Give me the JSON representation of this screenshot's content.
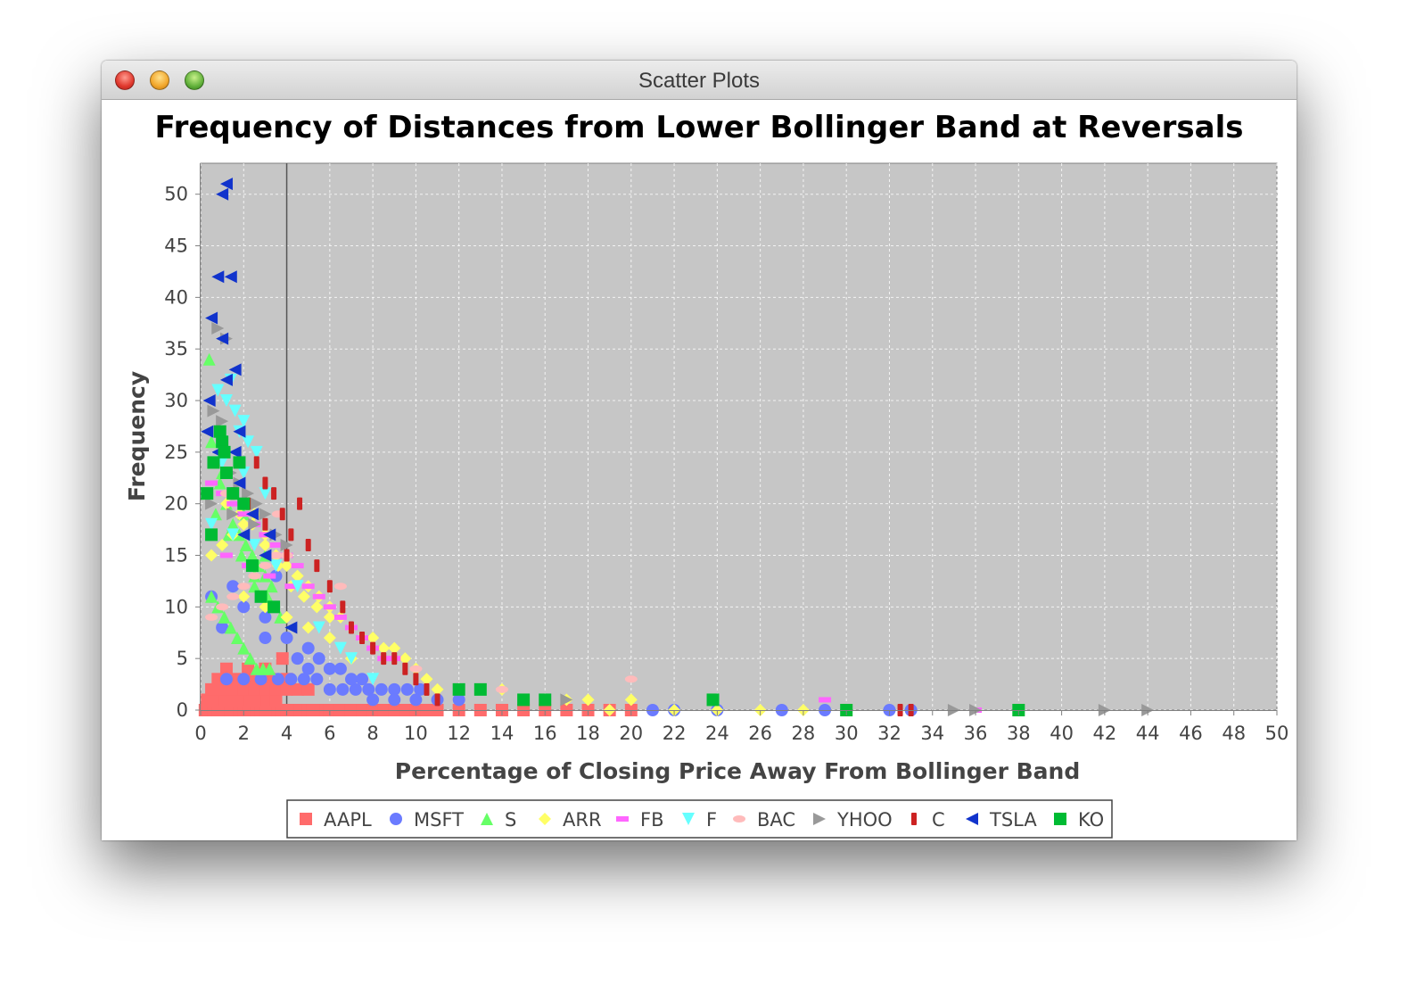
{
  "window": {
    "title": "Scatter Plots"
  },
  "chart_data": {
    "type": "scatter",
    "title": "Frequency of Distances from Lower Bollinger Band at Reversals",
    "xlabel": "Percentage of Closing Price Away From Bollinger Band",
    "ylabel": "Frequency",
    "xlim": [
      0,
      50
    ],
    "ylim": [
      0,
      53
    ],
    "x_ticks": [
      "0",
      "2",
      "4",
      "6",
      "8",
      "10",
      "12",
      "14",
      "16",
      "18",
      "20",
      "22",
      "24",
      "26",
      "28",
      "30",
      "32",
      "34",
      "36",
      "38",
      "40",
      "42",
      "44",
      "46",
      "48",
      "50"
    ],
    "y_ticks": [
      "0",
      "5",
      "10",
      "15",
      "20",
      "25",
      "30",
      "35",
      "40",
      "45",
      "50"
    ],
    "grid": true,
    "legend_position": "bottom",
    "reference_line_x": 4,
    "series": [
      {
        "name": "AAPL",
        "marker": "square",
        "color": "#ff6b6b",
        "x": [
          0.2,
          0.4,
          0.6,
          0.8,
          1,
          1.2,
          1.4,
          1.6,
          1.8,
          2,
          2.2,
          2.4,
          2.6,
          2.8,
          3,
          3.2,
          3.4,
          3.6,
          3.8,
          4,
          4.2,
          4.4,
          4.6,
          4.8,
          5,
          5.2,
          5.4,
          5.6,
          5.8,
          6,
          6.5,
          7,
          7.5,
          8,
          8.5,
          9,
          9.5,
          10,
          10.5,
          11,
          12,
          13,
          14,
          15,
          16,
          17,
          18,
          19,
          20,
          0.3,
          0.7,
          1.1,
          1.5,
          1.9,
          2.3,
          2.7,
          3.1,
          3.5,
          0.5,
          1,
          1.5,
          2,
          2.5,
          3,
          3.5,
          4,
          4.5,
          5,
          0.8,
          1.6,
          2.4,
          3.2,
          4,
          1.2,
          2.2,
          3,
          3.8
        ],
        "y": [
          0,
          0,
          0,
          0,
          0,
          0,
          0,
          0,
          0,
          0,
          0,
          0,
          0,
          0,
          0,
          0,
          0,
          0,
          0,
          0,
          0,
          0,
          0,
          0,
          0,
          0,
          0,
          0,
          0,
          0,
          0,
          0,
          0,
          0,
          0,
          0,
          0,
          0,
          0,
          0,
          0,
          0,
          0,
          0,
          0,
          0,
          0,
          0,
          0,
          1,
          1,
          1,
          1,
          1,
          1,
          1,
          1,
          1,
          2,
          2,
          2,
          2,
          2,
          2,
          2,
          2,
          2,
          2,
          3,
          3,
          3,
          3,
          3,
          4,
          4,
          4,
          5
        ]
      },
      {
        "name": "MSFT",
        "marker": "circle",
        "color": "#6b7bff",
        "x": [
          1.2,
          2,
          2.8,
          3.6,
          4.2,
          4.8,
          5.4,
          6,
          6.6,
          7.2,
          7.8,
          8.4,
          9,
          9.6,
          10.2,
          11,
          12,
          5,
          6,
          7,
          8,
          9,
          10,
          4.5,
          5.5,
          6.5,
          7.5,
          3,
          4,
          5,
          1,
          2,
          3,
          21,
          22,
          24,
          27,
          29,
          32,
          33,
          0.5,
          1.5,
          2.5,
          3.5
        ],
        "y": [
          3,
          3,
          3,
          3,
          3,
          3,
          3,
          2,
          2,
          2,
          2,
          2,
          2,
          2,
          2,
          1,
          1,
          4,
          4,
          3,
          1,
          1,
          1,
          5,
          5,
          4,
          3,
          7,
          7,
          6,
          8,
          10,
          9,
          0,
          0,
          0,
          0,
          0,
          0,
          0,
          11,
          12,
          14,
          13
        ]
      },
      {
        "name": "S",
        "marker": "triangle-up",
        "color": "#66ff66",
        "x": [
          0.4,
          0.6,
          0.9,
          1.2,
          1.5,
          1.8,
          2.1,
          2.4,
          2.7,
          3,
          3.3,
          0.5,
          0.8,
          1.1,
          1.4,
          1.7,
          2,
          2.3,
          2.6,
          2.9,
          3.2,
          0.3,
          0.7,
          1.3,
          1.9,
          2.5,
          3.1,
          3.7,
          1,
          2,
          3,
          0.5,
          1.5,
          2.5
        ],
        "y": [
          34,
          24,
          22,
          20,
          18,
          17,
          16,
          15,
          14,
          13,
          12,
          11,
          10,
          9,
          8,
          7,
          6,
          5,
          4,
          4,
          4,
          21,
          19,
          17,
          15,
          13,
          11,
          9,
          23,
          19,
          15,
          26,
          18,
          12
        ]
      },
      {
        "name": "ARR",
        "marker": "diamond",
        "color": "#ffff66",
        "x": [
          0.5,
          1,
          1.5,
          2,
          2.5,
          3,
          3.5,
          4,
          4.5,
          5,
          5.5,
          6,
          6.5,
          7,
          7.5,
          8,
          8.5,
          9,
          9.5,
          10,
          10.5,
          11,
          12,
          13,
          14,
          15,
          16,
          17,
          18,
          19,
          20,
          22,
          24,
          26,
          28,
          30,
          1.2,
          1.8,
          2.4,
          3,
          3.6,
          4.2,
          4.8,
          5.4,
          6,
          2,
          3,
          4,
          5,
          6,
          7
        ],
        "y": [
          15,
          16,
          17,
          18,
          19,
          17,
          15,
          14,
          13,
          12,
          11,
          10,
          9,
          8,
          7,
          7,
          6,
          6,
          5,
          4,
          3,
          2,
          2,
          2,
          2,
          1,
          1,
          1,
          1,
          0,
          1,
          0,
          0,
          0,
          0,
          0,
          20,
          19,
          18,
          16,
          14,
          12,
          11,
          10,
          9,
          11,
          10,
          9,
          8,
          7,
          5
        ]
      },
      {
        "name": "FB",
        "marker": "dash",
        "color": "#ff66ff",
        "x": [
          0.5,
          1,
          1.5,
          2,
          2.5,
          3,
          3.5,
          4,
          4.5,
          5,
          5.5,
          6,
          6.5,
          7,
          7.5,
          8,
          8.5,
          9,
          1.2,
          2.2,
          3.2,
          4.2,
          29,
          36
        ],
        "y": [
          22,
          21,
          20,
          19,
          18,
          17,
          16,
          15,
          14,
          12,
          11,
          10,
          9,
          8,
          7,
          6,
          5,
          5,
          15,
          14,
          13,
          12,
          1,
          0
        ]
      },
      {
        "name": "F",
        "marker": "triangle-down",
        "color": "#66ffff",
        "x": [
          0.8,
          1.2,
          1.6,
          2,
          1.4,
          1.8,
          2.2,
          2.6,
          1,
          2,
          3,
          0.5,
          1.5,
          2.5,
          3.5,
          4.5,
          5.5,
          6.5,
          7,
          8
        ],
        "y": [
          31,
          30,
          29,
          28,
          32,
          27,
          26,
          25,
          24,
          23,
          21,
          18,
          17,
          16,
          14,
          12,
          8,
          6,
          5,
          3
        ]
      },
      {
        "name": "BAC",
        "marker": "ellipse",
        "color": "#ffbbbb",
        "x": [
          0.5,
          1,
          1.5,
          2,
          2.5,
          3,
          3.5,
          4,
          6.5,
          10,
          20,
          12,
          14,
          1.2,
          2.4,
          3.6
        ],
        "y": [
          9,
          10,
          11,
          12,
          13,
          14,
          15,
          15,
          12,
          4,
          3,
          2,
          2,
          21,
          20,
          19
        ]
      },
      {
        "name": "YHOO",
        "marker": "triangle-right",
        "color": "#999999",
        "x": [
          0.8,
          1.2,
          0.6,
          1,
          1.4,
          1.8,
          2.2,
          2.6,
          3,
          0.5,
          1.5,
          2.5,
          3.5,
          4,
          17,
          35,
          36,
          42,
          44
        ],
        "y": [
          37,
          36,
          29,
          28,
          23,
          22,
          21,
          20,
          19,
          20,
          19,
          18,
          17,
          16,
          1,
          0,
          0,
          0,
          0
        ],
        "_": ""
      },
      {
        "name": "C",
        "marker": "bar",
        "color": "#cc2222",
        "x": [
          2.6,
          3,
          3.4,
          3.8,
          4.6,
          4.2,
          5,
          5.4,
          6,
          6.6,
          7,
          7.5,
          8,
          8.5,
          9,
          9.5,
          10,
          10.5,
          11,
          4,
          3,
          2.2,
          1.5,
          33,
          32.5
        ],
        "y": [
          24,
          22,
          21,
          19,
          20,
          17,
          16,
          14,
          12,
          10,
          8,
          7,
          6,
          5,
          5,
          4,
          3,
          2,
          1,
          15,
          18,
          20,
          21,
          0,
          0
        ]
      },
      {
        "name": "TSLA",
        "marker": "triangle-left",
        "color": "#1133cc",
        "x": [
          1.2,
          1,
          0.8,
          1.4,
          0.5,
          1,
          1.2,
          1.6,
          1.8,
          0.4,
          1.6,
          0.3,
          0.8,
          1.8,
          2.4,
          3.2,
          4.2,
          2,
          3
        ],
        "y": [
          51,
          50,
          42,
          42,
          38,
          36,
          32,
          33,
          27,
          30,
          25,
          27,
          25,
          22,
          19,
          17,
          8,
          17,
          15
        ]
      },
      {
        "name": "KO",
        "marker": "square",
        "color": "#00bb33",
        "x": [
          0.9,
          1,
          1.1,
          0.6,
          0.3,
          1.5,
          2,
          1.8,
          0.5,
          2.4,
          12,
          13,
          15,
          16,
          23.8,
          30,
          38,
          1.2,
          2.8,
          3.4
        ],
        "y": [
          27,
          26,
          25,
          24,
          21,
          21,
          20,
          24,
          17,
          14,
          2,
          2,
          1,
          1,
          1,
          0,
          0,
          23,
          11,
          10
        ]
      }
    ]
  }
}
